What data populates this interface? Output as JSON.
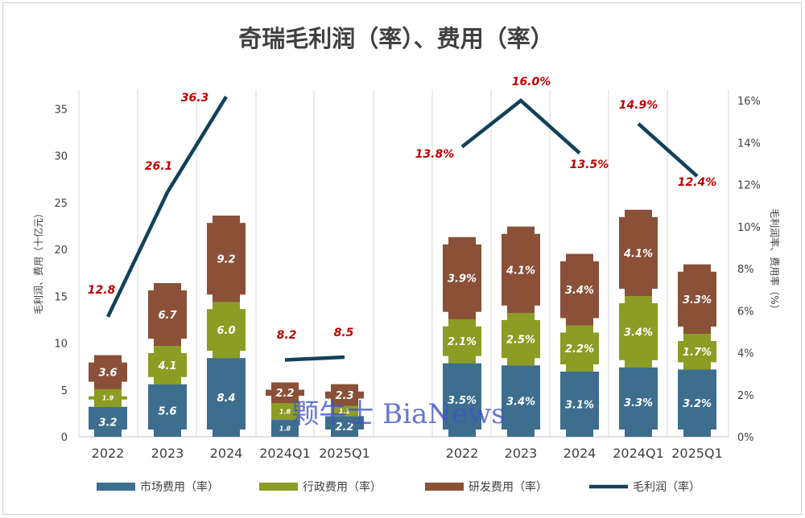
{
  "chart_data": {
    "type": "bar",
    "title": "奇瑞毛利润（率）、费用（率）",
    "ylabel_left": "毛利润、费用（十亿元）",
    "ylabel_right": "毛利润率、费用率（%）",
    "left_axis": {
      "ylim": [
        0,
        37
      ],
      "ticks": [
        "0",
        "5",
        "10",
        "15",
        "20",
        "25",
        "30",
        "35"
      ]
    },
    "right_axis": {
      "ylim": [
        0,
        16.5
      ],
      "ticks": [
        "0%",
        "2%",
        "4%",
        "6%",
        "8%",
        "10%",
        "12%",
        "14%",
        "16%"
      ]
    },
    "grid": "vertical",
    "legend": "bottom",
    "series_names": [
      "市场费用（率）",
      "行政费用（率）",
      "研发费用（率）",
      "毛利润（率）"
    ],
    "colors": {
      "market": "#3d6e8e",
      "admin": "#8c9c25",
      "rd": "#8a5038",
      "line": "#12415a",
      "label": "#c00000"
    },
    "amount_group": {
      "categories": [
        "2022",
        "2023",
        "2024",
        "2024Q1",
        "2025Q1"
      ],
      "market": [
        3.2,
        5.6,
        8.4,
        1.8,
        2.2
      ],
      "market_labels": [
        "3.2",
        "5.6",
        "8.4",
        "1.8",
        "2.2"
      ],
      "admin": [
        1.9,
        4.1,
        6.0,
        1.8,
        1.1
      ],
      "admin_labels": [
        "1.9",
        "4.1",
        "6.0",
        "1.8",
        "1.1"
      ],
      "rd": [
        3.6,
        6.7,
        9.2,
        2.2,
        2.3
      ],
      "rd_labels": [
        "3.6",
        "6.7",
        "9.2",
        "2.2",
        "2.3"
      ],
      "gross_profit": [
        12.8,
        26.1,
        36.3,
        8.2,
        8.5
      ],
      "gross_profit_labels": [
        "12.8",
        "26.1",
        "36.3",
        "8.2",
        "8.5"
      ]
    },
    "rate_group": {
      "categories": [
        "2022",
        "2023",
        "2024",
        "2024Q1",
        "2025Q1"
      ],
      "market": [
        3.5,
        3.4,
        3.1,
        3.3,
        3.2
      ],
      "market_labels": [
        "3.5%",
        "3.4%",
        "3.1%",
        "3.3%",
        "3.2%"
      ],
      "admin": [
        2.1,
        2.5,
        2.2,
        3.4,
        1.7
      ],
      "admin_labels": [
        "2.1%",
        "2.5%",
        "2.2%",
        "3.4%",
        "1.7%"
      ],
      "rd": [
        3.9,
        4.1,
        3.4,
        4.1,
        3.3
      ],
      "rd_labels": [
        "3.9%",
        "4.1%",
        "3.4%",
        "4.1%",
        "3.3%"
      ],
      "gross_margin": [
        13.8,
        16.0,
        13.5,
        14.9,
        12.4
      ],
      "gross_margin_labels": [
        "13.8%",
        "16.0%",
        "13.5%",
        "14.9%",
        "12.4%"
      ]
    }
  },
  "watermark": "颗牛士 BiaNews"
}
